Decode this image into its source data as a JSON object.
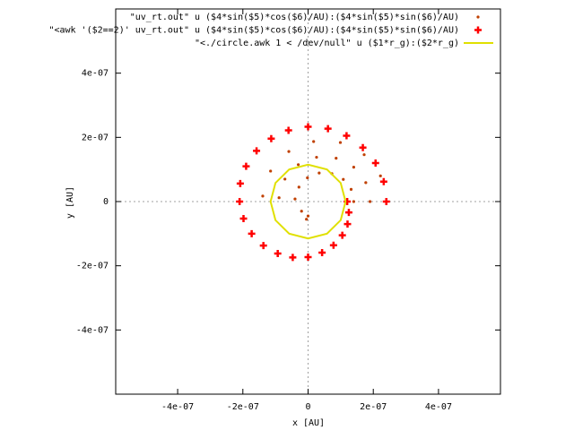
{
  "chart_data": {
    "type": "scatter",
    "xlabel": "x [AU]",
    "ylabel": "y [AU]",
    "xlim": [
      -5.9e-07,
      5.9e-07
    ],
    "ylim": [
      -6e-07,
      6e-07
    ],
    "xticks": [
      {
        "value": -4e-07,
        "label": "-4e-07"
      },
      {
        "value": -2e-07,
        "label": "-2e-07"
      },
      0,
      {
        "value": 2e-07,
        "label": "2e-07"
      },
      {
        "value": 4e-07,
        "label": "4e-07"
      }
    ],
    "yticks": [
      {
        "value": -4e-07,
        "label": "-4e-07"
      },
      {
        "value": -2e-07,
        "label": "-2e-07"
      },
      0,
      {
        "value": 2e-07,
        "label": "2e-07"
      },
      {
        "value": 4e-07,
        "label": "4e-07"
      }
    ],
    "zero_axes": true,
    "legend": "top-right",
    "series": [
      {
        "name": "\"uv_rt.out\" u ($4*sin($5)*cos($6)/AU):($4*sin($5)*sin($6)/AU)",
        "color": "#c04000",
        "marker": "dot",
        "x": [
          2.4e-07,
          2.22e-07,
          1.72e-07,
          9.9e-08,
          1.7e-08,
          -5.9e-08,
          -1.15e-07,
          -1.39e-07,
          1.9e-07,
          1.77e-07,
          1.4e-07,
          8.6e-08,
          2.6e-08,
          -3e-08,
          -7.1e-08,
          -8.9e-08,
          1.4e-07,
          1.32e-07,
          1.08e-07,
          7.3e-08,
          3.4e-08,
          -2e-09,
          -2.8e-08,
          -4e-08,
          -2e-08,
          0,
          -5e-09
        ],
        "values": [
          0,
          8e-08,
          1.46e-07,
          1.84e-07,
          1.87e-07,
          1.56e-07,
          9.5e-08,
          1.7e-08,
          0,
          5.9e-08,
          1.07e-07,
          1.35e-07,
          1.38e-07,
          1.15e-07,
          7e-08,
          1.2e-08,
          0,
          3.8e-08,
          6.9e-08,
          8.7e-08,
          8.9e-08,
          7.4e-08,
          4.5e-08,
          8e-09,
          -3e-08,
          -4.5e-08,
          -5.5e-08
        ]
      },
      {
        "name": "\"<awk '($2==2)' uv_rt.out\" u ($4*sin($5)*cos($6)/AU):($4*sin($5)*sin($6)/AU)",
        "color": "#ff0000",
        "marker": "plus",
        "x": [
          2.4e-07,
          2.32e-07,
          2.07e-07,
          1.68e-07,
          1.18e-07,
          6.1e-08,
          0,
          -6e-08,
          -1.13e-07,
          -1.58e-07,
          -1.9e-07,
          -2.08e-07,
          -2.1e-07,
          -1.98e-07,
          -1.73e-07,
          -1.37e-07,
          -9.3e-08,
          -4.7e-08,
          0,
          4.3e-08,
          7.8e-08,
          1.05e-07,
          1.21e-07,
          1.25e-07,
          1.2e-07
        ],
        "values": [
          0,
          6.2e-08,
          1.2e-07,
          1.68e-07,
          2.05e-07,
          2.27e-07,
          2.33e-07,
          2.22e-07,
          1.96e-07,
          1.58e-07,
          1.1e-07,
          5.6e-08,
          0,
          -5.3e-08,
          -1e-07,
          -1.37e-07,
          -1.62e-07,
          -1.74e-07,
          -1.73e-07,
          -1.59e-07,
          -1.36e-07,
          -1.05e-07,
          -7e-08,
          -3.4e-08,
          0
        ]
      },
      {
        "name": "\"<./circle.awk 1 < /dev/null\" u ($1*r_g):($2*r_g)",
        "color": "#e0e000",
        "marker": "line",
        "x": [
          1.15e-07,
          1e-07,
          5.8e-08,
          0,
          -5.8e-08,
          -1e-07,
          -1.15e-07,
          -1e-07,
          -5.8e-08,
          0,
          5.8e-08,
          1e-07,
          1.15e-07
        ],
        "values": [
          0,
          5.8e-08,
          1e-07,
          1.15e-07,
          1e-07,
          5.8e-08,
          0,
          -5.8e-08,
          -1e-07,
          -1.15e-07,
          -1e-07,
          -5.8e-08,
          0
        ]
      }
    ]
  }
}
